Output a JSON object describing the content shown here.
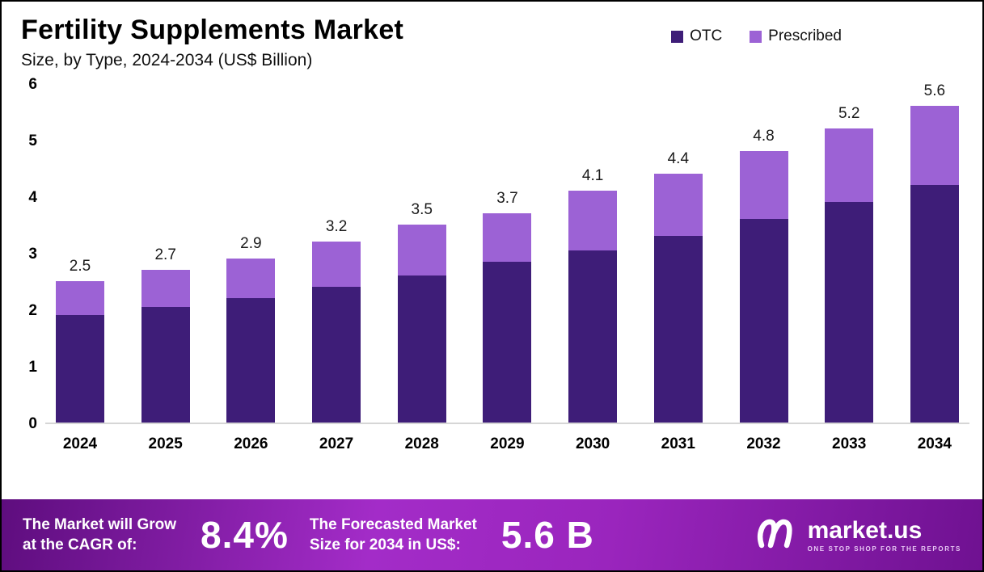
{
  "header": {
    "title": "Fertility Supplements Market",
    "subtitle": "Size, by Type, 2024-2034 (US$ Billion)"
  },
  "legend": [
    {
      "label": "OTC",
      "color": "#3e1d78"
    },
    {
      "label": "Prescribed",
      "color": "#9c62d5"
    }
  ],
  "chart_data": {
    "type": "bar",
    "stacked": true,
    "title": "Fertility Supplements Market Size, by Type, 2024-2034 (US$ Billion)",
    "categories": [
      "2024",
      "2025",
      "2026",
      "2027",
      "2028",
      "2029",
      "2030",
      "2031",
      "2032",
      "2033",
      "2034"
    ],
    "series": [
      {
        "name": "OTC",
        "color": "#3e1d78",
        "values": [
          1.9,
          2.05,
          2.2,
          2.4,
          2.6,
          2.85,
          3.05,
          3.3,
          3.6,
          3.9,
          4.2
        ]
      },
      {
        "name": "Prescribed",
        "color": "#9c62d5",
        "values": [
          0.6,
          0.65,
          0.7,
          0.8,
          0.9,
          0.85,
          1.05,
          1.1,
          1.2,
          1.3,
          1.4
        ]
      }
    ],
    "totals": [
      2.5,
      2.7,
      2.9,
      3.2,
      3.5,
      3.7,
      4.1,
      4.4,
      4.8,
      5.2,
      5.6
    ],
    "xlabel": "",
    "ylabel": "",
    "ylim": [
      0,
      6
    ],
    "yticks": [
      0,
      1,
      2,
      3,
      4,
      5,
      6
    ],
    "grid": false,
    "legend_position": "top-right"
  },
  "footer": {
    "cagr_label_line1": "The Market will Grow",
    "cagr_label_line2": "at the CAGR of:",
    "cagr_value": "8.4%",
    "forecast_label_line1": "The Forecasted Market",
    "forecast_label_line2": "Size for 2034 in US$:",
    "forecast_value": "5.6 B",
    "brand_name": "market.us",
    "brand_tagline": "ONE STOP SHOP FOR THE REPORTS"
  }
}
